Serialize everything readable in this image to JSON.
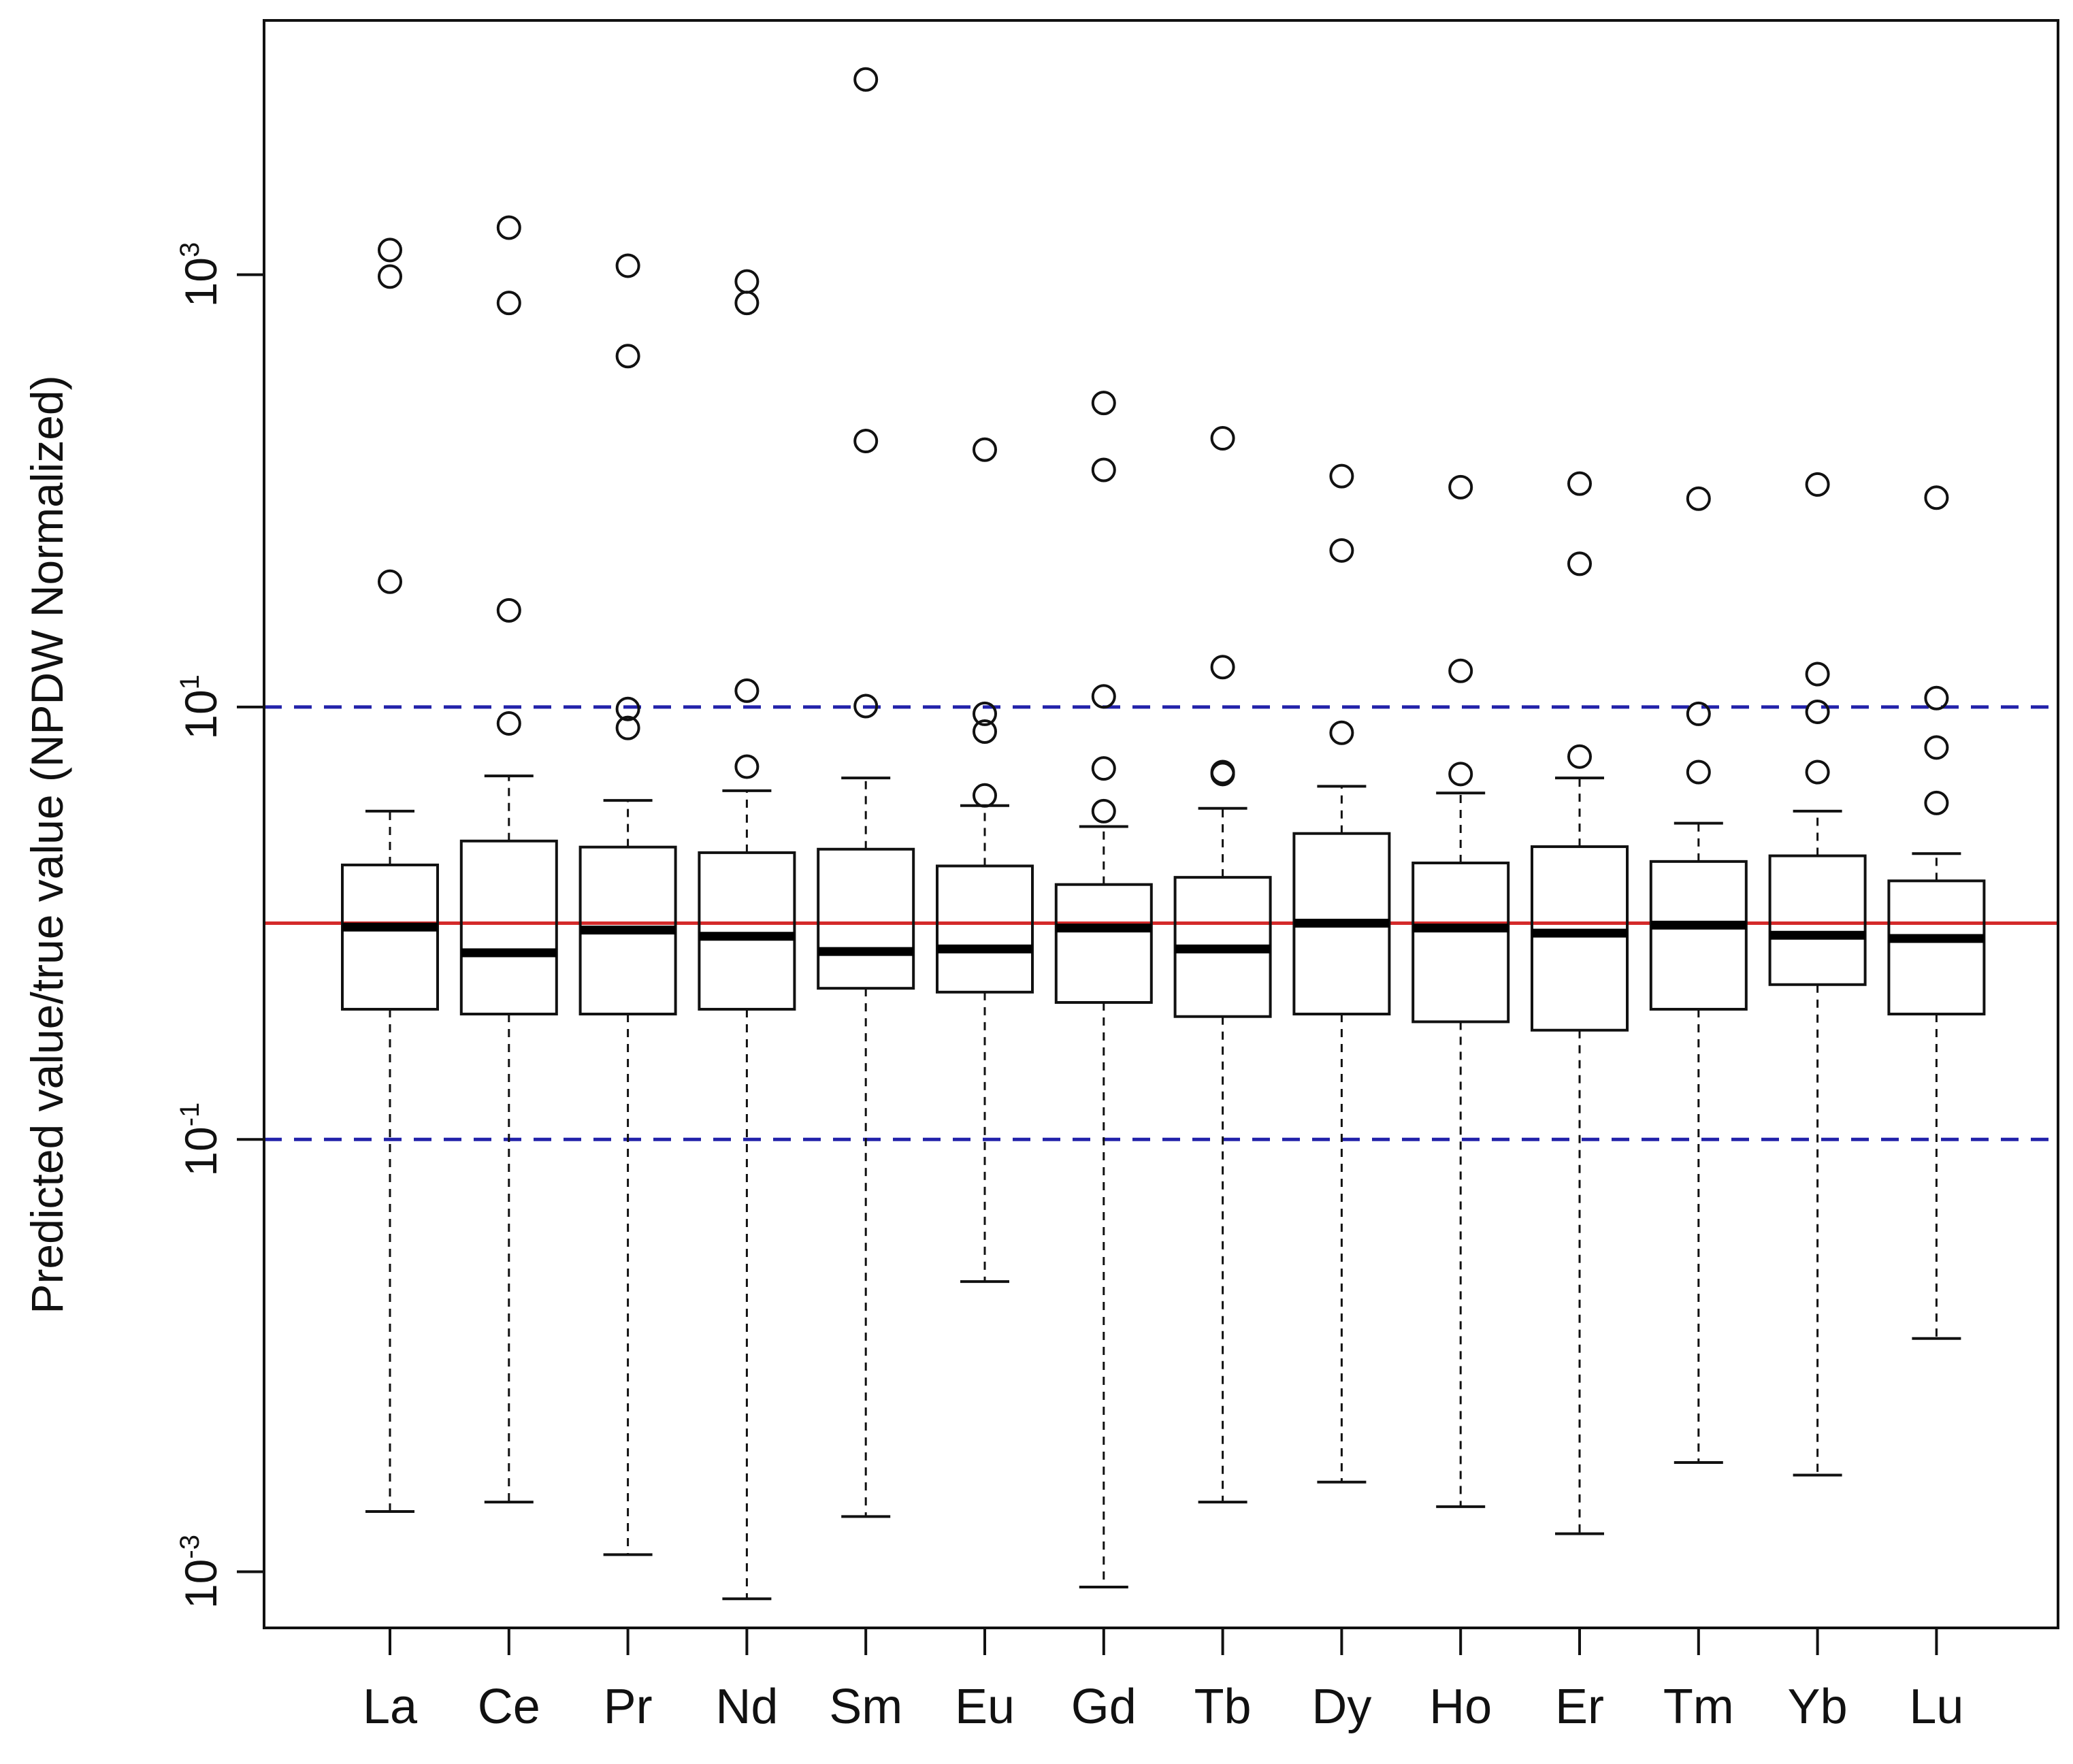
{
  "chart_data": {
    "type": "boxplot",
    "title": "",
    "xlabel": "",
    "ylabel": "Predicted value/true value (NPDW Normalized)",
    "yscale": "log10",
    "ylim": [
      0.00055,
      15000
    ],
    "yticks": [
      {
        "value": 0.001,
        "base": "10",
        "exp": "-3"
      },
      {
        "value": 0.1,
        "base": "10",
        "exp": "-1"
      },
      {
        "value": 10,
        "base": "10",
        "exp": "1"
      },
      {
        "value": 1000,
        "base": "10",
        "exp": "3"
      }
    ],
    "reference_lines": [
      {
        "value": 1.0,
        "style": "solid",
        "color": "#d42a2a"
      },
      {
        "value": 10,
        "style": "dashed",
        "color": "#2222aa"
      },
      {
        "value": 0.1,
        "style": "dashed",
        "color": "#2222aa"
      }
    ],
    "categories": [
      "La",
      "Ce",
      "Pr",
      "Nd",
      "Sm",
      "Eu",
      "Gd",
      "Tb",
      "Dy",
      "Ho",
      "Er",
      "Tm",
      "Yb",
      "Lu"
    ],
    "boxes": [
      {
        "label": "La",
        "whisker_low": 0.0019,
        "q1": 0.4,
        "median": 0.96,
        "q3": 1.86,
        "whisker_high": 3.3,
        "outliers": [
          1300,
          980,
          38
        ]
      },
      {
        "label": "Ce",
        "whisker_low": 0.0021,
        "q1": 0.38,
        "median": 0.73,
        "q3": 2.4,
        "whisker_high": 4.8,
        "outliers": [
          1650,
          740,
          28,
          8.4
        ]
      },
      {
        "label": "Pr",
        "whisker_low": 0.0012,
        "q1": 0.38,
        "median": 0.93,
        "q3": 2.25,
        "whisker_high": 3.7,
        "outliers": [
          1100,
          420,
          9.8,
          8.0
        ]
      },
      {
        "label": "Nd",
        "whisker_low": 0.00075,
        "q1": 0.4,
        "median": 0.87,
        "q3": 2.12,
        "whisker_high": 4.1,
        "outliers": [
          930,
          740,
          11.9,
          5.3
        ]
      },
      {
        "label": "Sm",
        "whisker_low": 0.0018,
        "q1": 0.5,
        "median": 0.74,
        "q3": 2.2,
        "whisker_high": 4.7,
        "outliers": [
          8000,
          170,
          10.1
        ]
      },
      {
        "label": "Eu",
        "whisker_low": 0.022,
        "q1": 0.48,
        "median": 0.76,
        "q3": 1.84,
        "whisker_high": 3.5,
        "outliers": [
          155,
          9.3,
          7.7,
          3.9
        ]
      },
      {
        "label": "Gd",
        "whisker_low": 0.00085,
        "q1": 0.43,
        "median": 0.95,
        "q3": 1.51,
        "whisker_high": 2.8,
        "outliers": [
          255,
          125,
          11.2,
          5.2,
          3.3
        ]
      },
      {
        "label": "Tb",
        "whisker_low": 0.0021,
        "q1": 0.37,
        "median": 0.76,
        "q3": 1.63,
        "whisker_high": 3.4,
        "outliers": [
          175,
          15.3,
          5.0,
          4.9
        ]
      },
      {
        "label": "Dy",
        "whisker_low": 0.0026,
        "q1": 0.38,
        "median": 1.0,
        "q3": 2.6,
        "whisker_high": 4.3,
        "outliers": [
          117,
          53,
          7.6
        ]
      },
      {
        "label": "Ho",
        "whisker_low": 0.002,
        "q1": 0.35,
        "median": 0.95,
        "q3": 1.9,
        "whisker_high": 4.0,
        "outliers": [
          104,
          14.7,
          4.9
        ]
      },
      {
        "label": "Er",
        "whisker_low": 0.0015,
        "q1": 0.32,
        "median": 0.9,
        "q3": 2.26,
        "whisker_high": 4.7,
        "outliers": [
          108,
          46,
          5.9
        ]
      },
      {
        "label": "Tm",
        "whisker_low": 0.0032,
        "q1": 0.4,
        "median": 0.98,
        "q3": 1.93,
        "whisker_high": 2.9,
        "outliers": [
          92,
          9.3,
          5.0
        ]
      },
      {
        "label": "Yb",
        "whisker_low": 0.0028,
        "q1": 0.52,
        "median": 0.88,
        "q3": 2.05,
        "whisker_high": 3.3,
        "outliers": [
          107,
          14.2,
          9.5,
          5.0
        ]
      },
      {
        "label": "Lu",
        "whisker_low": 0.012,
        "q1": 0.38,
        "median": 0.85,
        "q3": 1.57,
        "whisker_high": 2.1,
        "outliers": [
          93,
          11.0,
          6.5,
          3.6
        ]
      }
    ]
  }
}
